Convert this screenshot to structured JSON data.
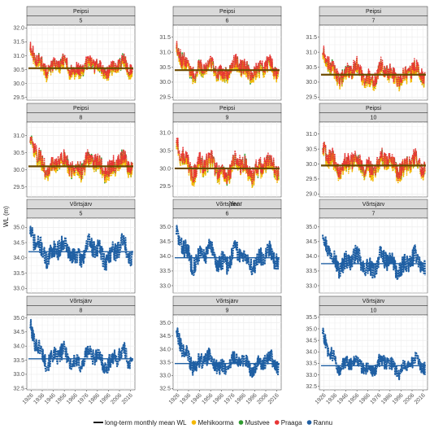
{
  "chart_data": {
    "type": "line",
    "facet_layout": "4 rows x 3 columns, two-level strips (lake, month)",
    "xlabel": "Year",
    "ylabel": "WL (m)",
    "x_ticks": [
      "1926",
      "1936",
      "1946",
      "1956",
      "1966",
      "1976",
      "1986",
      "1996",
      "2006",
      "2016"
    ],
    "xlim": [
      1922,
      2020
    ],
    "grid": true,
    "legend_position": "bottom",
    "legend": [
      {
        "key": "mean",
        "label": "long-term monthly mean WL",
        "shape": "line",
        "color": "#1a1a1a"
      },
      {
        "key": "mehikoorma",
        "label": "Mehikoorma",
        "shape": "point",
        "color": "#f5b800"
      },
      {
        "key": "mustvee",
        "label": "Mustvee",
        "shape": "point",
        "color": "#2e9a2e"
      },
      {
        "key": "praaga",
        "label": "Praaga",
        "shape": "point",
        "color": "#e83535"
      },
      {
        "key": "rannu",
        "label": "Rannu",
        "shape": "point",
        "color": "#1f5fa3"
      }
    ],
    "panels": [
      {
        "lake": "Peipsi",
        "month": "5",
        "mean": 30.55,
        "ylim": [
          29.4,
          32.1
        ],
        "yticks": [
          "29.5",
          "30.0",
          "30.5",
          "31.0",
          "31.5",
          "32.0"
        ],
        "mean_color": "#6b4a00",
        "stations": [
          "mehikoorma",
          "mustvee",
          "praaga"
        ],
        "series_start": 1925,
        "series_end": 2018,
        "amplitude": 0.3,
        "early_rise": 0.55,
        "seed": 11
      },
      {
        "lake": "Peipsi",
        "month": "6",
        "mean": 30.4,
        "ylim": [
          29.4,
          31.9
        ],
        "yticks": [
          "29.5",
          "30.0",
          "30.5",
          "31.0",
          "31.5"
        ],
        "mean_color": "#6b4a00",
        "stations": [
          "mehikoorma",
          "mustvee",
          "praaga"
        ],
        "series_start": 1925,
        "series_end": 2018,
        "amplitude": 0.32,
        "early_rise": 0.55,
        "seed": 23
      },
      {
        "lake": "Peipsi",
        "month": "7",
        "mean": 30.25,
        "ylim": [
          29.4,
          31.9
        ],
        "yticks": [
          "29.5",
          "30.0",
          "30.5",
          "31.0",
          "31.5"
        ],
        "mean_color": "#6b4a00",
        "stations": [
          "mehikoorma",
          "mustvee",
          "praaga"
        ],
        "series_start": 1925,
        "series_end": 2018,
        "amplitude": 0.32,
        "early_rise": 0.6,
        "seed": 37
      },
      {
        "lake": "Peipsi",
        "month": "8",
        "mean": 30.1,
        "ylim": [
          29.2,
          31.4
        ],
        "yticks": [
          "29.5",
          "30.0",
          "30.5",
          "31.0"
        ],
        "mean_color": "#6b4a00",
        "stations": [
          "mehikoorma",
          "mustvee",
          "praaga"
        ],
        "series_start": 1925,
        "series_end": 2018,
        "amplitude": 0.3,
        "early_rise": 0.55,
        "seed": 41
      },
      {
        "lake": "Peipsi",
        "month": "9",
        "mean": 30.0,
        "ylim": [
          29.2,
          31.3
        ],
        "yticks": [
          "29.5",
          "30.0",
          "30.5",
          "31.0"
        ],
        "mean_color": "#6b4a00",
        "stations": [
          "mehikoorma",
          "mustvee",
          "praaga"
        ],
        "series_start": 1925,
        "series_end": 2018,
        "amplitude": 0.32,
        "early_rise": 0.5,
        "seed": 53
      },
      {
        "lake": "Peipsi",
        "month": "10",
        "mean": 29.95,
        "ylim": [
          28.9,
          31.4
        ],
        "yticks": [
          "29.0",
          "29.5",
          "30.0",
          "30.5",
          "31.0"
        ],
        "mean_color": "#6b4a00",
        "stations": [
          "mehikoorma",
          "mustvee",
          "praaga"
        ],
        "series_start": 1925,
        "series_end": 2018,
        "amplitude": 0.35,
        "early_rise": 0.4,
        "seed": 67
      },
      {
        "lake": "Võrtsjärv",
        "month": "5",
        "mean": 34.2,
        "ylim": [
          32.85,
          35.3
        ],
        "yticks": [
          "33.0",
          "33.5",
          "34.0",
          "34.5",
          "35.0"
        ],
        "mean_color": "#1f5fa3",
        "stations": [
          "rannu"
        ],
        "series_start": 1925,
        "series_end": 2018,
        "amplitude": 0.4,
        "early_rise": 0.4,
        "seed": 71
      },
      {
        "lake": "Võrtsjärv",
        "month": "6",
        "mean": 33.95,
        "ylim": [
          32.75,
          35.3
        ],
        "yticks": [
          "33.0",
          "33.5",
          "34.0",
          "34.5",
          "35.0"
        ],
        "mean_color": "#1f5fa3",
        "stations": [
          "rannu"
        ],
        "series_start": 1925,
        "series_end": 2018,
        "amplitude": 0.42,
        "early_rise": 0.6,
        "seed": 83
      },
      {
        "lake": "Võrtsjärv",
        "month": "7",
        "mean": 33.75,
        "ylim": [
          32.75,
          35.3
        ],
        "yticks": [
          "33.0",
          "33.5",
          "34.0",
          "34.5",
          "35.0"
        ],
        "mean_color": "#1f5fa3",
        "stations": [
          "rannu"
        ],
        "series_start": 1925,
        "series_end": 2018,
        "amplitude": 0.4,
        "early_rise": 0.8,
        "seed": 97
      },
      {
        "lake": "Võrtsjärv",
        "month": "8",
        "mean": 33.55,
        "ylim": [
          32.45,
          35.1
        ],
        "yticks": [
          "32.5",
          "33.0",
          "33.5",
          "34.0",
          "34.5",
          "35.0"
        ],
        "mean_color": "#1f5fa3",
        "stations": [
          "rannu"
        ],
        "series_start": 1925,
        "series_end": 2018,
        "amplitude": 0.38,
        "early_rise": 0.9,
        "seed": 101
      },
      {
        "lake": "Võrtsjärv",
        "month": "9",
        "mean": 33.45,
        "ylim": [
          32.45,
          35.3
        ],
        "yticks": [
          "32.5",
          "33.0",
          "33.5",
          "34.0",
          "34.5",
          "35.0"
        ],
        "mean_color": "#1f5fa3",
        "stations": [
          "rannu"
        ],
        "series_start": 1925,
        "series_end": 2018,
        "amplitude": 0.38,
        "early_rise": 1.0,
        "seed": 113
      },
      {
        "lake": "Võrtsjärv",
        "month": "10",
        "mean": 33.4,
        "ylim": [
          32.35,
          35.6
        ],
        "yticks": [
          "32.5",
          "33.0",
          "33.5",
          "34.0",
          "34.5",
          "35.0",
          "35.5"
        ],
        "mean_color": "#1f5fa3",
        "stations": [
          "rannu"
        ],
        "series_start": 1925,
        "series_end": 2018,
        "amplitude": 0.38,
        "early_rise": 1.2,
        "seed": 127
      }
    ]
  }
}
